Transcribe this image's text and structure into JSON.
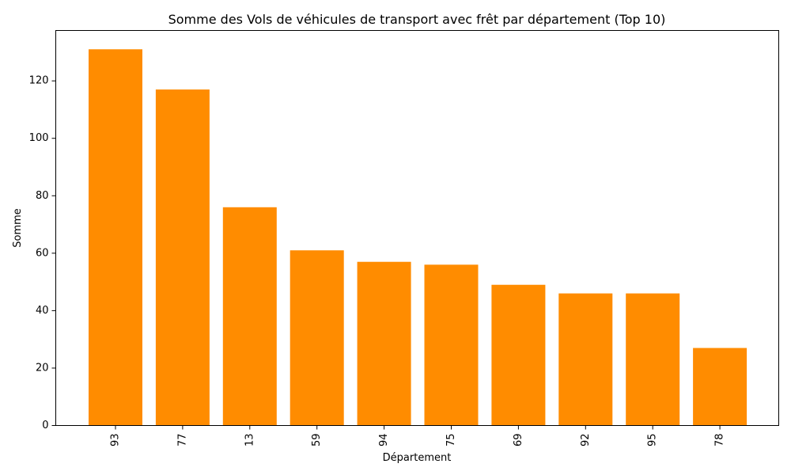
{
  "chart_data": {
    "type": "bar",
    "title": "Somme des Vols de véhicules de transport avec frêt par département (Top 10)",
    "xlabel": "Département",
    "ylabel": "Somme",
    "categories": [
      "93",
      "77",
      "13",
      "59",
      "94",
      "75",
      "69",
      "92",
      "95",
      "78"
    ],
    "values": [
      131,
      117,
      76,
      61,
      57,
      56,
      49,
      46,
      46,
      27
    ],
    "ylim": [
      0,
      137.55
    ],
    "yticks": [
      0,
      20,
      40,
      60,
      80,
      100,
      120
    ],
    "bar_color": "#ff8c00",
    "grid": false,
    "xtick_rotation": "vertical"
  }
}
